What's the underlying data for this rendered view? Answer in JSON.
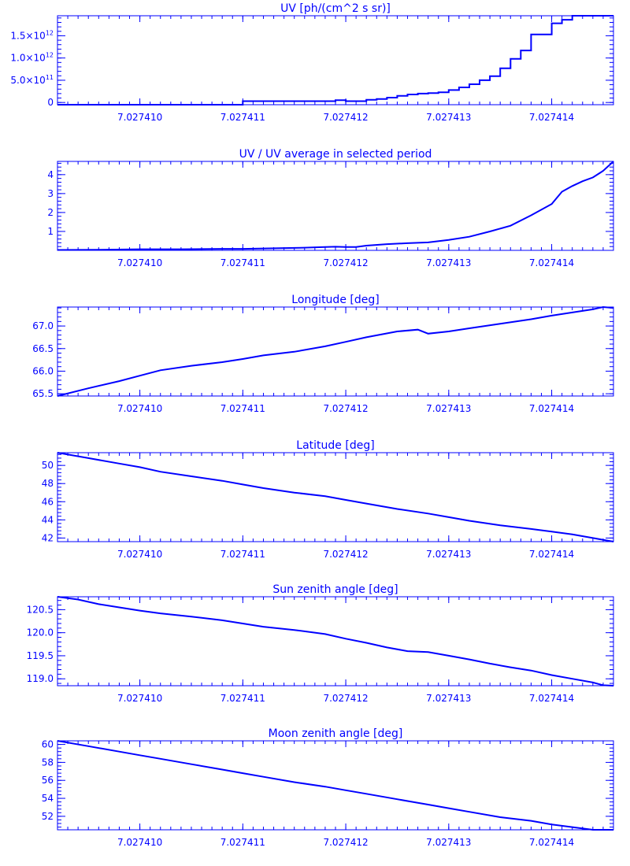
{
  "chart_data": [
    {
      "type": "line",
      "step": true,
      "title": "UV [ph/(cm^2 s sr)]",
      "x_ticks": [
        "7.027410",
        "7.027411",
        "7.027412",
        "7.027413",
        "7.027414"
      ],
      "y_ticks": [
        {
          "value": 0,
          "label": "0"
        },
        {
          "value": 500000000000.0,
          "label": "5.0×10",
          "exp": "11"
        },
        {
          "value": 1000000000000.0,
          "label": "1.0×10",
          "exp": "12"
        },
        {
          "value": 1500000000000.0,
          "label": "1.5×10",
          "exp": "12"
        }
      ],
      "xlim": [
        7.0274092,
        7.0274146
      ],
      "ylim": [
        -50000000000.0,
        1950000000000.0
      ],
      "x": [
        7.0274092,
        7.027411,
        7.0274119,
        7.027412,
        7.0274121,
        7.0274122,
        7.0274123,
        7.0274124,
        7.0274125,
        7.0274126,
        7.0274127,
        7.0274128,
        7.0274129,
        7.027413,
        7.0274131,
        7.0274132,
        7.0274133,
        7.0274134,
        7.0274135,
        7.0274136,
        7.0274137,
        7.0274138,
        7.0274139,
        7.027414,
        7.0274141,
        7.0274142,
        7.0274143,
        7.0274144,
        7.0274145,
        7.0274146
      ],
      "y": [
        -50000000000.0,
        30000000000.0,
        50000000000.0,
        30000000000.0,
        30000000000.0,
        60000000000.0,
        80000000000.0,
        110000000000.0,
        150000000000.0,
        180000000000.0,
        200000000000.0,
        210000000000.0,
        230000000000.0,
        280000000000.0,
        340000000000.0,
        410000000000.0,
        500000000000.0,
        590000000000.0,
        770000000000.0,
        980000000000.0,
        1170000000000.0,
        1530000000000.0,
        1530000000000.0,
        1780000000000.0,
        1860000000000.0,
        1950000000000.0,
        1950000000000.0,
        1950000000000.0,
        1950000000000.0,
        1950000000000.0
      ]
    },
    {
      "type": "line",
      "title": "UV / UV average in selected period",
      "x_ticks": [
        "7.027410",
        "7.027411",
        "7.027412",
        "7.027413",
        "7.027414"
      ],
      "y_ticks": [
        {
          "value": 1,
          "label": "1"
        },
        {
          "value": 2,
          "label": "2"
        },
        {
          "value": 3,
          "label": "3"
        },
        {
          "value": 4,
          "label": "4"
        }
      ],
      "xlim": [
        7.0274092,
        7.0274146
      ],
      "ylim": [
        0,
        4.7
      ],
      "x": [
        7.0274092,
        7.0274096,
        7.02741,
        7.0274104,
        7.0274108,
        7.027411,
        7.0274112,
        7.0274114,
        7.0274116,
        7.0274118,
        7.0274119,
        7.027412,
        7.0274121,
        7.0274122,
        7.0274124,
        7.0274126,
        7.0274128,
        7.027413,
        7.0274132,
        7.0274134,
        7.0274136,
        7.0274138,
        7.027414,
        7.0274141,
        7.0274142,
        7.0274143,
        7.0274144,
        7.0274145,
        7.0274146
      ],
      "y": [
        0.02,
        0.03,
        0.06,
        0.06,
        0.08,
        0.08,
        0.1,
        0.12,
        0.14,
        0.18,
        0.19,
        0.18,
        0.18,
        0.25,
        0.33,
        0.38,
        0.42,
        0.55,
        0.72,
        1.0,
        1.3,
        1.85,
        2.45,
        3.1,
        3.4,
        3.65,
        3.85,
        4.2,
        4.7
      ]
    },
    {
      "type": "line",
      "title": "Longitude [deg]",
      "x_ticks": [
        "7.027410",
        "7.027411",
        "7.027412",
        "7.027413",
        "7.027414"
      ],
      "y_ticks": [
        {
          "value": 65.5,
          "label": "65.5"
        },
        {
          "value": 66.0,
          "label": "66.0"
        },
        {
          "value": 66.5,
          "label": "66.5"
        },
        {
          "value": 67.0,
          "label": "67.0"
        }
      ],
      "xlim": [
        7.0274092,
        7.0274146
      ],
      "ylim": [
        65.45,
        67.42
      ],
      "x": [
        7.0274092,
        7.0274095,
        7.0274098,
        7.02741,
        7.0274102,
        7.0274105,
        7.0274108,
        7.027411,
        7.0274112,
        7.0274115,
        7.0274118,
        7.027412,
        7.0274122,
        7.0274125,
        7.0274127,
        7.0274128,
        7.027413,
        7.0274132,
        7.0274135,
        7.0274138,
        7.027414,
        7.0274142,
        7.0274144,
        7.0274145,
        7.0274146
      ],
      "y": [
        65.45,
        65.62,
        65.78,
        65.9,
        66.02,
        66.12,
        66.2,
        66.27,
        66.35,
        66.43,
        66.55,
        66.65,
        66.75,
        66.88,
        66.92,
        66.83,
        66.88,
        66.95,
        67.05,
        67.15,
        67.23,
        67.3,
        67.37,
        67.42,
        67.4
      ]
    },
    {
      "type": "line",
      "title": "Latitude [deg]",
      "x_ticks": [
        "7.027410",
        "7.027411",
        "7.027412",
        "7.027413",
        "7.027414"
      ],
      "y_ticks": [
        {
          "value": 42,
          "label": "42"
        },
        {
          "value": 44,
          "label": "44"
        },
        {
          "value": 46,
          "label": "46"
        },
        {
          "value": 48,
          "label": "48"
        },
        {
          "value": 50,
          "label": "50"
        }
      ],
      "xlim": [
        7.0274092,
        7.0274146
      ],
      "ylim": [
        41.6,
        51.4
      ],
      "x": [
        7.0274092,
        7.0274095,
        7.0274098,
        7.02741,
        7.0274102,
        7.0274105,
        7.0274108,
        7.027411,
        7.0274112,
        7.0274115,
        7.0274118,
        7.027412,
        7.0274122,
        7.0274125,
        7.0274128,
        7.027413,
        7.0274132,
        7.0274135,
        7.0274138,
        7.027414,
        7.0274142,
        7.0274144,
        7.0274146
      ],
      "y": [
        51.4,
        50.8,
        50.2,
        49.8,
        49.3,
        48.8,
        48.3,
        47.9,
        47.5,
        47.0,
        46.6,
        46.2,
        45.8,
        45.2,
        44.7,
        44.3,
        43.9,
        43.4,
        43.0,
        42.7,
        42.4,
        42.0,
        41.6
      ]
    },
    {
      "type": "line",
      "title": "Sun zenith angle [deg]",
      "x_ticks": [
        "7.027410",
        "7.027411",
        "7.027412",
        "7.027413",
        "7.027414"
      ],
      "y_ticks": [
        {
          "value": 119.0,
          "label": "119.0"
        },
        {
          "value": 119.5,
          "label": "119.5"
        },
        {
          "value": 120.0,
          "label": "120.0"
        },
        {
          "value": 120.5,
          "label": "120.5"
        }
      ],
      "xlim": [
        7.0274092,
        7.0274146
      ],
      "ylim": [
        118.85,
        120.78
      ],
      "x": [
        7.0274092,
        7.0274094,
        7.0274096,
        7.0274098,
        7.02741,
        7.0274102,
        7.0274105,
        7.0274108,
        7.027411,
        7.0274112,
        7.0274115,
        7.0274118,
        7.027412,
        7.0274122,
        7.0274124,
        7.0274126,
        7.0274128,
        7.027413,
        7.0274132,
        7.0274134,
        7.0274136,
        7.0274138,
        7.027414,
        7.0274142,
        7.0274144,
        7.0274145,
        7.0274146
      ],
      "y": [
        120.78,
        120.72,
        120.62,
        120.55,
        120.48,
        120.42,
        120.35,
        120.27,
        120.2,
        120.13,
        120.06,
        119.97,
        119.87,
        119.78,
        119.68,
        119.6,
        119.58,
        119.5,
        119.42,
        119.33,
        119.25,
        119.18,
        119.08,
        119.0,
        118.92,
        118.86,
        118.85
      ]
    },
    {
      "type": "line",
      "title": "Moon zenith angle [deg]",
      "x_ticks": [
        "7.027410",
        "7.027411",
        "7.027412",
        "7.027413",
        "7.027414"
      ],
      "y_ticks": [
        {
          "value": 52,
          "label": "52"
        },
        {
          "value": 54,
          "label": "54"
        },
        {
          "value": 56,
          "label": "56"
        },
        {
          "value": 58,
          "label": "58"
        },
        {
          "value": 60,
          "label": "60"
        }
      ],
      "xlim": [
        7.0274092,
        7.0274146
      ],
      "ylim": [
        50.5,
        60.4
      ],
      "x": [
        7.0274092,
        7.0274095,
        7.0274098,
        7.02741,
        7.0274102,
        7.0274105,
        7.0274108,
        7.027411,
        7.0274112,
        7.0274115,
        7.0274118,
        7.027412,
        7.0274122,
        7.0274125,
        7.0274128,
        7.027413,
        7.0274132,
        7.0274135,
        7.0274138,
        7.027414,
        7.0274142,
        7.0274144,
        7.0274146
      ],
      "y": [
        60.4,
        59.8,
        59.2,
        58.8,
        58.4,
        57.8,
        57.2,
        56.8,
        56.4,
        55.8,
        55.3,
        54.9,
        54.5,
        53.9,
        53.3,
        52.9,
        52.5,
        51.9,
        51.5,
        51.1,
        50.8,
        50.5,
        50.5
      ]
    }
  ]
}
